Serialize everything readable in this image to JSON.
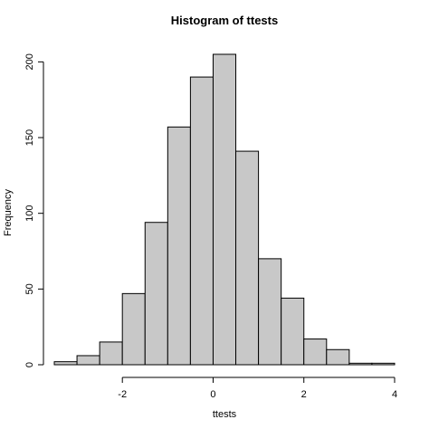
{
  "chart_data": {
    "type": "bar",
    "title": "Histogram of ttests",
    "xlabel": "ttests",
    "ylabel": "Frequency",
    "bin_edges": [
      -3.5,
      -3.0,
      -2.5,
      -2.0,
      -1.5,
      -1.0,
      -0.5,
      0.0,
      0.5,
      1.0,
      1.5,
      2.0,
      2.5,
      3.0,
      3.5,
      4.0
    ],
    "values": [
      2,
      6,
      15,
      47,
      94,
      157,
      190,
      205,
      141,
      70,
      44,
      17,
      10,
      1,
      1
    ],
    "x_ticks": [
      -2,
      0,
      2,
      4
    ],
    "x_tick_labels": [
      "-2",
      "0",
      "2",
      "4"
    ],
    "y_ticks": [
      0,
      50,
      100,
      150,
      200
    ],
    "y_tick_labels": [
      "0",
      "50",
      "100",
      "150",
      "200"
    ],
    "xlim": [
      -3.5,
      4.0
    ],
    "ylim": [
      0,
      205
    ],
    "grid": false,
    "colors": {
      "bar_fill": "#c8c8c8",
      "bar_stroke": "#000000"
    }
  }
}
